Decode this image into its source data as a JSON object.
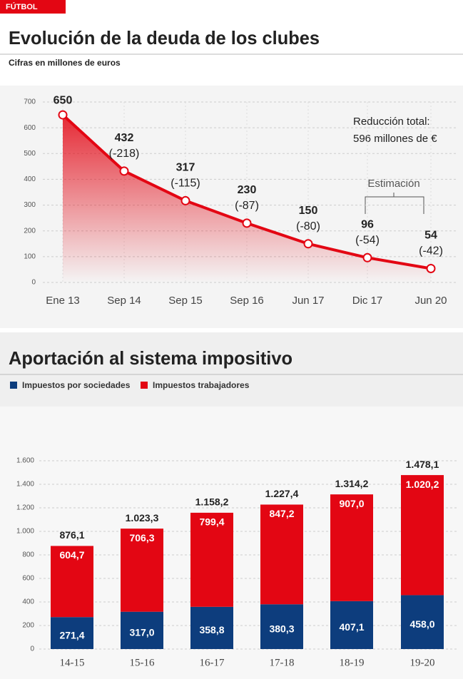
{
  "header": {
    "section": "FÚTBOL"
  },
  "chart_data": [
    {
      "type": "line",
      "title": "Evolución de la deuda de los clubes",
      "subtitle": "Cifras en millones de euros",
      "categories": [
        "Ene 13",
        "Sep 14",
        "Sep 15",
        "Sep 16",
        "Jun 17",
        "Dic 17",
        "Jun 20"
      ],
      "values": [
        650,
        432,
        317,
        230,
        150,
        96,
        54
      ],
      "changes": [
        null,
        -218,
        -115,
        -87,
        -80,
        -54,
        -42
      ],
      "change_labels": [
        null,
        "(-218)",
        "(-115)",
        "(-87)",
        "(-80)",
        "(-54)",
        "(-42)"
      ],
      "color": "#e30613",
      "ylim": [
        0,
        700
      ],
      "yticks": [
        0,
        100,
        200,
        300,
        400,
        500,
        600,
        700
      ],
      "grid": true,
      "annotations": [
        "Reducción total:",
        "596 millones de €",
        "Estimación"
      ]
    },
    {
      "type": "bar",
      "stacked": true,
      "title": "Aportación al sistema impositivo",
      "categories": [
        "14-15",
        "15-16",
        "16-17",
        "17-18",
        "18-19",
        "19-20"
      ],
      "series": [
        {
          "name": "Impuestos por sociedades",
          "color": "#0d3d7d",
          "values": [
            271.4,
            317.0,
            358.8,
            380.3,
            407.1,
            458.0
          ],
          "value_labels": [
            "271,4",
            "317,0",
            "358,8",
            "380,3",
            "407,1",
            "458,0"
          ]
        },
        {
          "name": "Impuestos trabajadores",
          "color": "#e30613",
          "values": [
            604.7,
            706.3,
            799.4,
            847.2,
            907.0,
            1020.2
          ],
          "value_labels": [
            "604,7",
            "706,3",
            "799,4",
            "847,2",
            "907,0",
            "1.020,2"
          ]
        }
      ],
      "totals": [
        876.1,
        1023.3,
        1158.2,
        1227.4,
        1314.2,
        1478.1
      ],
      "total_labels": [
        "876,1",
        "1.023,3",
        "1.158,2",
        "1.227,4",
        "1.314,2",
        "1.478,1"
      ],
      "ylim": [
        0,
        1600
      ],
      "yticks": [
        0,
        200,
        400,
        600,
        800,
        {
          "value": 1000,
          "label": "1.000"
        },
        {
          "value": 1200,
          "label": "1.200"
        },
        {
          "value": 1400,
          "label": "1.400"
        },
        {
          "value": 1600,
          "label": "1.600"
        }
      ],
      "grid": true,
      "legend": "top-left"
    }
  ]
}
